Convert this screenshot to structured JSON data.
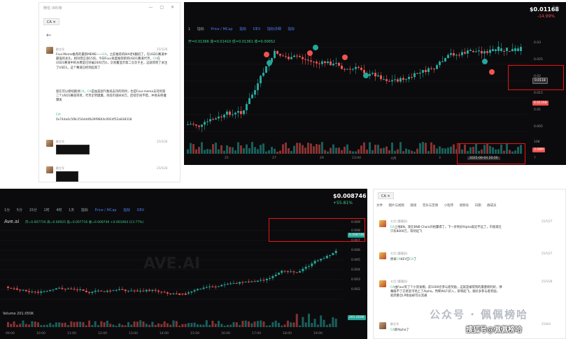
{
  "chat_top": {
    "window_title": "微信 (88)条",
    "window_controls": "— □ ✕",
    "search_chip": "CA ✕",
    "back_glyph": "←",
    "messages": [
      {
        "user": "群主号",
        "date": "25/5/26",
        "text_pre": "Four.Meme推荐的最新MEME——",
        "ca1": "CA",
        "text_mid": "，之前推荐的BIA老K翻倍了，在USD1赛道中最强的龙头，相对而言涨15倍，今日Four再度推荐新的USD1赛道代币，",
        "ca2": "CA",
        "text_post": "在USD1赛道中的水费是已突破2000万U，交易量显示第二交次于主，这就得到了关注了USD1。这个赛道已经到起来了",
        "text2_pre": "现在可以继续跟进",
        "ca3": "CA",
        "text2_mid": "，",
        "ca4": "CA",
        "text2_post": "是由美国气象局支持的项目，也是Four.meme支持的第二个USD1赛道项目，代币走势健康，目前市值800万，后续空间不错，冲进去吧撸爆发",
        "ca_label": "CA:",
        "ca_address": "0x74da4c5f8c254dd4fb39f9804c0924f52a838318"
      },
      {
        "user": "群主号",
        "date": "25/5/26"
      },
      {
        "user": "群主号",
        "date": "25/5/26"
      }
    ]
  },
  "chart_top": {
    "price": "$0.01168",
    "change": "-14.99%",
    "corner_label": "安全：",
    "toolbar": [
      "1",
      "指标",
      "Price / MCap",
      "指标",
      "DEX",
      "指标详细",
      "指标"
    ],
    "ohlc": "开=0.01366  高=0.01410  低=0.01361  收=0.00652",
    "y_ticks": [
      "0.03",
      "0.025",
      "0.02",
      "0.015",
      "0.01",
      "0.005"
    ],
    "price_tag": "0.0118",
    "price_tag2": "0.01168",
    "vol_tag": "3.08M",
    "vol_label": "10K",
    "x_ticks": [
      "25",
      "27",
      "29",
      "13:00",
      "6月",
      "3",
      "7"
    ],
    "x_highlight": "2025-06-04  20:00"
  },
  "chart_bottom": {
    "price": "$0.008746",
    "change": "+55.81%",
    "toolbar": [
      "1分",
      "5分",
      "15分",
      "1时",
      "4时",
      "1天",
      "指标",
      "Price / MCap",
      "指标",
      "DEX"
    ],
    "title": "Ave.ai",
    "ohlc": "开=0.007716  高=0.00925  低=0.007716  收=0.008746  +0.001064 (13.77%)",
    "watermark": "AVE.AI",
    "y_ticks": [
      "0.009",
      "0.008",
      "0.007",
      "0.006",
      "0.005",
      "0.004",
      "0.003",
      "0.002"
    ],
    "price_tag": "0.008746",
    "vol_label": "Volume  201.050K",
    "vol_tag": "201.050K",
    "x_ticks": [
      "09:00",
      "10:00",
      "11:00",
      "12:00",
      "13:00",
      "14:00",
      "15:00",
      "16:00",
      "17:00",
      "18:00",
      "19:00"
    ]
  },
  "chat_bottom": {
    "search_chip": "CA ✕",
    "menu": [
      "文件",
      "图片与视频",
      "链接",
      "音乐与音频",
      "小程序",
      "视频号",
      "日期",
      "群成员"
    ],
    "messages": [
      {
        "user": "七月 (管理员)",
        "date": "25/5/27",
        "ca": "CA",
        "text": "上线BN，现在BNB Chain开始赢得了。下一步利好Alpha就近不远了，市值现在只有8000万，等待起飞"
      },
      {
        "user": "七月 (管理员)",
        "date": "25/5/27",
        "text_pre": "原來",
        "ca": "CA",
        "text_mid": "KEY已",
        "ca2": "CA",
        "text_post": "了"
      },
      {
        "user": "七月 (管理员)",
        "date": "25/5/28",
        "ca": "CA",
        "text": "由Four资了个小资食粮，前1000名参与者奖励，这就是被得到的最重磅利好，弹幕群不了交易里市场上了Alpha，判断WLFI买入，即将起飞。很好多参与者奖励，就到重仓LP收益却可以流通"
      },
      {
        "user": "群主号",
        "date": "25/6/4",
        "ca": "CA",
        "text": "即Alpha了"
      }
    ]
  },
  "watermarks": {
    "sogou": "公众号 · 佩佩榜哈",
    "sohu": "搜狐号@佩佩榜哈"
  },
  "colors": {
    "up": "#26a69a",
    "down": "#ef5350",
    "bg_chart": "#0b0b0d",
    "highlight_box": "#e11111",
    "ca_green": "#2fb46e"
  }
}
